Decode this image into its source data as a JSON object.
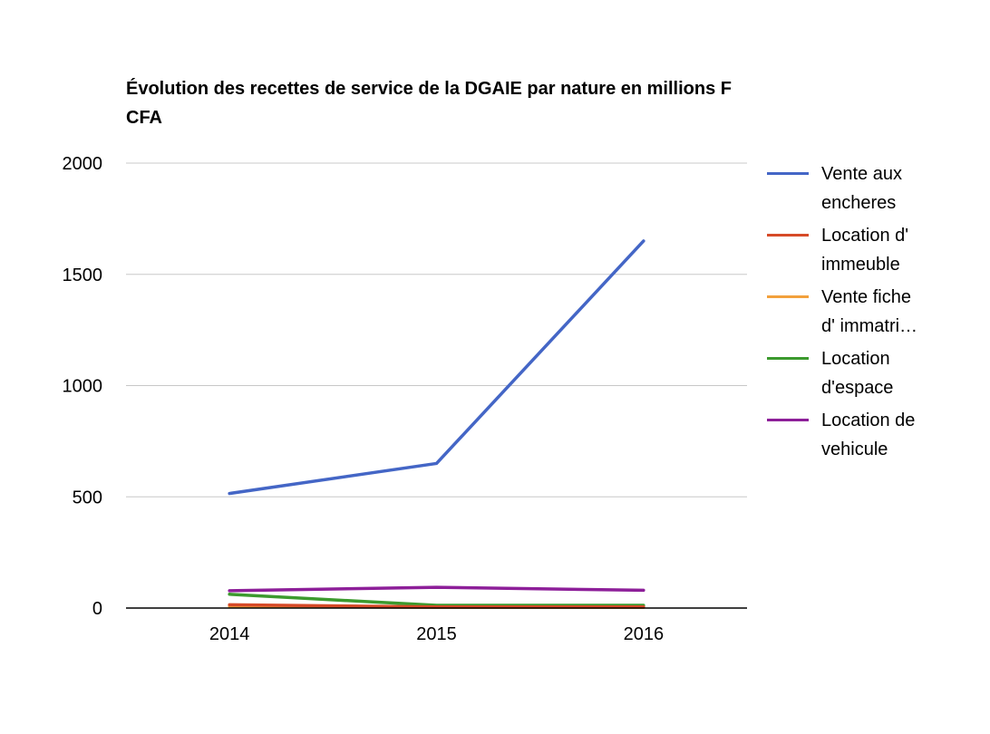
{
  "chart_data": {
    "type": "line",
    "title": "Évolution des recettes de service de la DGAIE par nature en millions F CFA",
    "xlabel": "",
    "ylabel": "",
    "categories": [
      "2014",
      "2015",
      "2016"
    ],
    "y_ticks": [
      "0",
      "500",
      "1000",
      "1500",
      "2000"
    ],
    "ylim": [
      0,
      2000
    ],
    "grid": true,
    "legend_position": "right",
    "series": [
      {
        "name": "Vente aux encheres",
        "color": "#4466c6",
        "values": [
          515,
          650,
          1650
        ]
      },
      {
        "name": "Location d' immeuble",
        "color": "#d64a28",
        "values": [
          15,
          5,
          5
        ]
      },
      {
        "name": "Vente fiche d' immatri…",
        "color": "#f2a03c",
        "values": [
          8,
          3,
          3
        ]
      },
      {
        "name": "Location d'espace",
        "color": "#3c9a2e",
        "values": [
          62,
          12,
          12
        ]
      },
      {
        "name": "Location de vehicule",
        "color": "#8d1f99",
        "values": [
          78,
          93,
          80
        ]
      }
    ]
  }
}
